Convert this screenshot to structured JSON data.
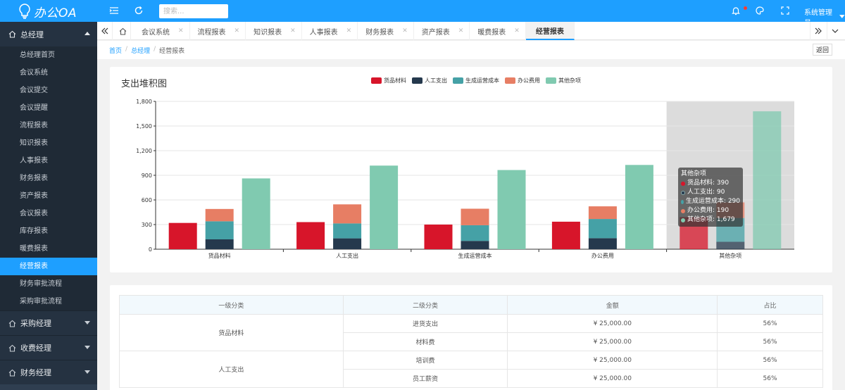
{
  "header": {
    "logo_text": "办公OA",
    "search_placeholder": "搜索...",
    "user_name": "系统管理员"
  },
  "sidebar": {
    "groups": [
      {
        "label": "总经理",
        "items": [
          "总经理首页",
          "会议系统",
          "会议提交",
          "会议提醒",
          "流程报表",
          "知识报表",
          "人事报表",
          "财务报表",
          "资产报表",
          "会议报表",
          "库存报表",
          "暖费报表",
          "经营报表",
          "财务审批流程",
          "采购审批流程"
        ],
        "active_index": 12
      },
      {
        "label": "采购经理"
      },
      {
        "label": "收费经理"
      },
      {
        "label": "财务经理"
      }
    ]
  },
  "tabs": {
    "items": [
      "会议系统",
      "流程报表",
      "知识报表",
      "人事报表",
      "财务报表",
      "资产报表",
      "暖费报表",
      "经营报表"
    ],
    "active_index": 7
  },
  "breadcrumb": {
    "items": [
      "首页",
      "总经理"
    ],
    "current": "经营报表",
    "back_label": "返回"
  },
  "chart": {
    "card_title": "支出堆积图"
  },
  "chart_data": {
    "type": "bar",
    "categories": [
      "货品材料",
      "人工支出",
      "生成运营成本",
      "办公费用",
      "其他杂项"
    ],
    "series": [
      {
        "name": "货品材料",
        "color": "#d7152a",
        "values": [
          320,
          330,
          300,
          335,
          390
        ],
        "stack_group": 0
      },
      {
        "name": "人工支出",
        "color": "#25394d",
        "values": [
          120,
          132,
          101,
          134,
          90
        ],
        "stack_group": 1
      },
      {
        "name": "生成运营成本",
        "color": "#45a1a6",
        "values": [
          220,
          182,
          191,
          234,
          290
        ],
        "stack_group": 1
      },
      {
        "name": "办公费用",
        "color": "#e77e64",
        "values": [
          150,
          232,
          201,
          154,
          190
        ],
        "stack_group": 1
      },
      {
        "name": "其他杂项",
        "color": "#80cab0",
        "values": [
          862,
          1018,
          964,
          1026,
          1679
        ],
        "stack_group": 2
      }
    ],
    "ylim": [
      0,
      1800
    ],
    "yticks": [
      0,
      300,
      600,
      900,
      1200,
      1500,
      1800
    ],
    "ytick_labels": [
      "0",
      "300",
      "600",
      "900",
      "1,200",
      "1,500",
      "1,800"
    ],
    "grid": true,
    "legend_position": "top-center",
    "highlighted_category_index": 4
  },
  "tooltip": {
    "title": "其他杂项",
    "rows": [
      {
        "label": "货品材料: 390",
        "color": "#d7152a"
      },
      {
        "label": "人工支出: 90",
        "color": "#25394d"
      },
      {
        "label": "生成运营成本: 290",
        "color": "#45a1a6"
      },
      {
        "label": "办公费用: 190",
        "color": "#e77e64"
      },
      {
        "label": "其他杂项: 1,679",
        "color": "#80cab0"
      }
    ]
  },
  "table": {
    "headers": [
      "一级分类",
      "二级分类",
      "金额",
      "占比"
    ],
    "groups": [
      {
        "category": "货品材料",
        "rows": [
          {
            "sub": "进货支出",
            "amount": "¥ 25,000.00",
            "ratio": "56%"
          },
          {
            "sub": "材料费",
            "amount": "¥ 25,000.00",
            "ratio": "56%"
          }
        ]
      },
      {
        "category": "人工支出",
        "rows": [
          {
            "sub": "培训费",
            "amount": "¥ 25,000.00",
            "ratio": "56%"
          },
          {
            "sub": "员工薪资",
            "amount": "¥ 25,000.00",
            "ratio": "56%"
          }
        ]
      }
    ]
  }
}
